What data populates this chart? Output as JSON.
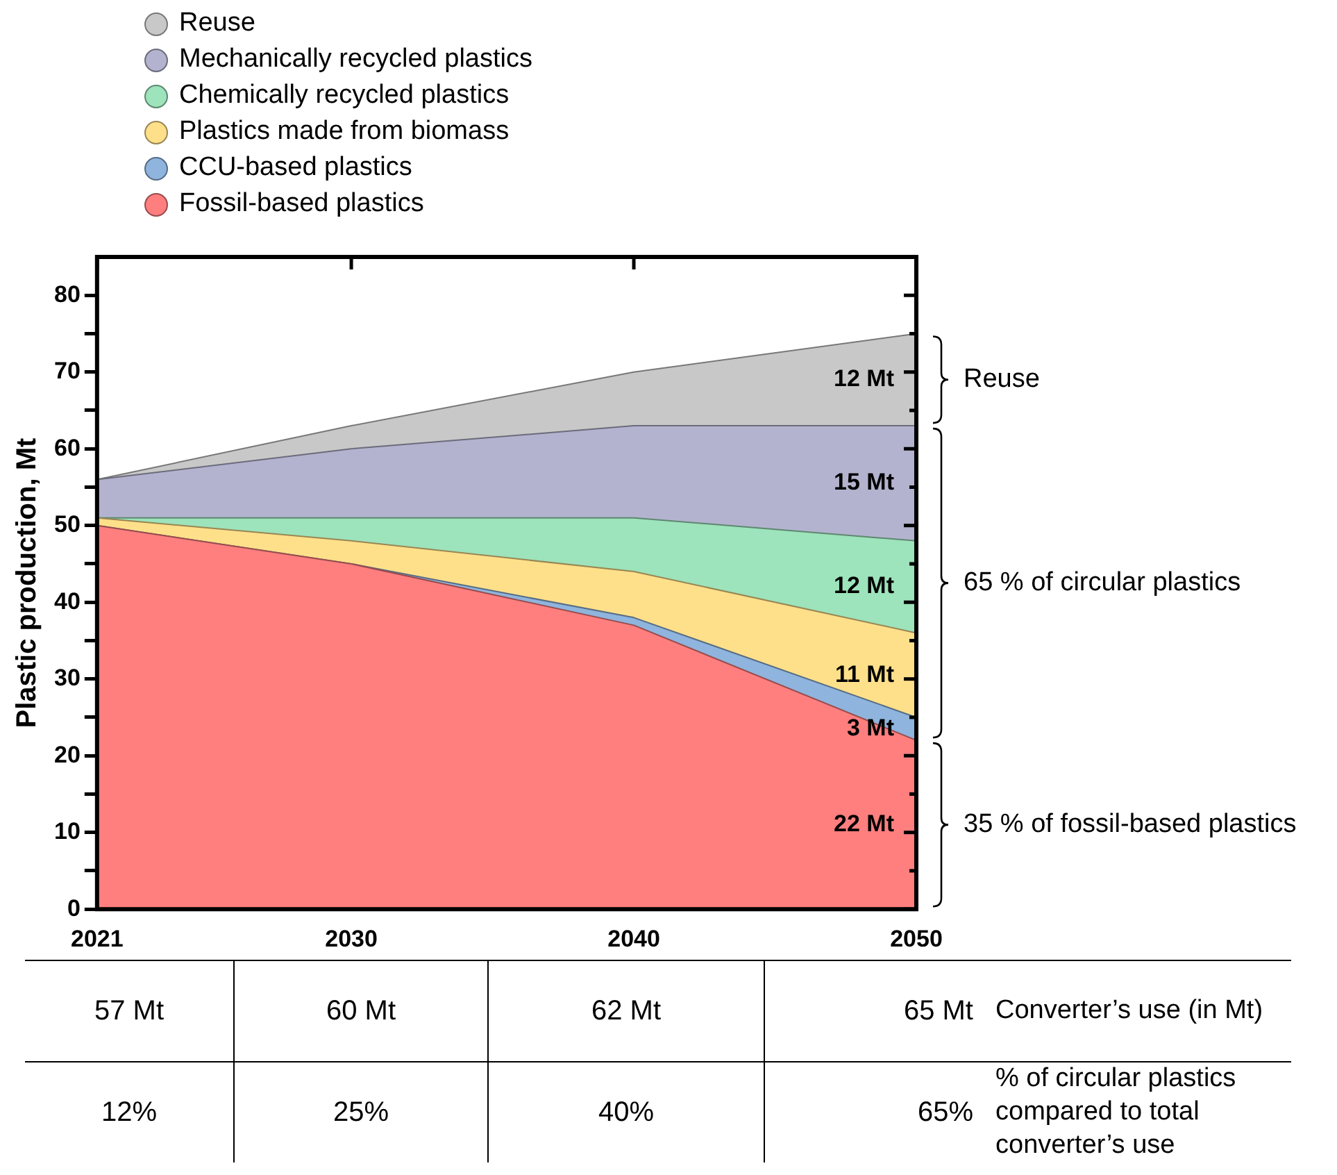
{
  "chart_data": [
    {
      "type": "area",
      "stacked": true,
      "ylabel": "Plastic production, Mt",
      "x": [
        2021,
        2030,
        2040,
        2050
      ],
      "xlim": [
        2021,
        2050
      ],
      "xticks": [
        2021,
        2030,
        2040,
        2050
      ],
      "ylim": [
        0,
        85
      ],
      "yticks": [
        0,
        {
          "value": 5,
          "label": null
        },
        10,
        {
          "value": 15,
          "label": null
        },
        20,
        {
          "value": 25,
          "label": null
        },
        30,
        {
          "value": 35,
          "label": null
        },
        40,
        {
          "value": 45,
          "label": null
        },
        50,
        {
          "value": 55,
          "label": null
        },
        60,
        {
          "value": 65,
          "label": null
        },
        70,
        {
          "value": 75,
          "label": null
        },
        80
      ],
      "grid": false,
      "legend": "top left",
      "marker": "none",
      "series": [
        {
          "name": "Fossil-based plastics",
          "color": "#ff7f7f",
          "values": [
            50,
            45,
            37,
            22
          ],
          "value_labels": [
            null,
            null,
            null,
            "22 Mt"
          ]
        },
        {
          "name": "CCU-based plastics",
          "color": "#8fb4dd",
          "values": [
            0,
            0,
            1,
            3
          ],
          "value_labels": [
            null,
            null,
            null,
            "3 Mt"
          ]
        },
        {
          "name": "Plastics made from biomass",
          "color": "#ffe08a",
          "values": [
            1,
            3,
            6,
            11
          ],
          "value_labels": [
            null,
            null,
            null,
            "11 Mt"
          ]
        },
        {
          "name": "Chemically recycled plastics",
          "color": "#9de3bb",
          "values": [
            0,
            3,
            7,
            12
          ],
          "value_labels": [
            null,
            null,
            null,
            "12 Mt"
          ]
        },
        {
          "name": "Mechanically recycled plastics",
          "color": "#b3b3cf",
          "values": [
            5,
            9,
            12,
            15
          ],
          "value_labels": [
            null,
            null,
            null,
            "15 Mt"
          ]
        },
        {
          "name": "Reuse",
          "color": "#c8c8c8",
          "values": [
            0,
            3,
            7,
            12
          ],
          "value_labels": [
            null,
            null,
            null,
            "12 Mt"
          ]
        }
      ],
      "annotations": [
        "Reuse",
        "65 % of circular plastics",
        "35 % of fossil-based plastics"
      ]
    },
    {
      "type": "other",
      "annotations": [
        "57 Mt",
        "60 Mt",
        "62 Mt",
        "65 Mt",
        "Converter’s use (in Mt)",
        "12%",
        "25%",
        "40%",
        "65%",
        "% of circular plastics compared to total converter’s use"
      ]
    }
  ]
}
